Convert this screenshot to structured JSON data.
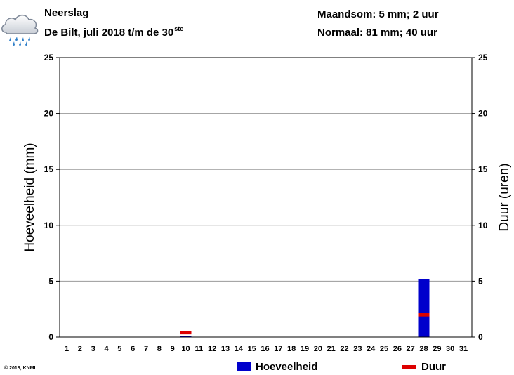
{
  "header": {
    "title": "Neerslag",
    "subtitle_main": "De Bilt, juli 2018 t/m de 30",
    "subtitle_sup": "ste",
    "monthly_sum": "Maandsom: 5 mm; 2 uur",
    "normal": "Normaal: 81 mm; 40 uur"
  },
  "copyright": "© 2018, KNMI",
  "icon": "rain-cloud-icon",
  "chart_data": {
    "type": "bar",
    "categories": [
      "1",
      "2",
      "3",
      "4",
      "5",
      "6",
      "7",
      "8",
      "9",
      "10",
      "11",
      "12",
      "13",
      "14",
      "15",
      "16",
      "17",
      "18",
      "19",
      "20",
      "21",
      "22",
      "23",
      "24",
      "25",
      "26",
      "27",
      "28",
      "29",
      "30",
      "31"
    ],
    "ylabel": "Hoeveelheid (mm)",
    "y2label": "Duur (uren)",
    "ylim": [
      0,
      25
    ],
    "y2lim": [
      0,
      25
    ],
    "yticks": [
      0,
      5,
      10,
      15,
      20,
      25
    ],
    "grid": true,
    "legend_position": "bottom",
    "series": [
      {
        "name": "Hoeveelheid",
        "color": "#0000cc",
        "values": [
          0,
          0,
          0,
          0,
          0,
          0,
          0,
          0,
          0,
          0.1,
          0,
          0,
          0,
          0,
          0,
          0,
          0,
          0,
          0,
          0,
          0,
          0,
          0,
          0,
          0,
          0,
          0,
          5.2,
          0,
          0,
          0
        ]
      },
      {
        "name": "Duur",
        "color": "#dd0000",
        "values": [
          0,
          0,
          0,
          0,
          0,
          0,
          0,
          0,
          0,
          0.4,
          0,
          0,
          0,
          0,
          0,
          0,
          0,
          0,
          0,
          0,
          0,
          0,
          0,
          0,
          0,
          0,
          0,
          2.0,
          0,
          0,
          0
        ]
      }
    ]
  }
}
